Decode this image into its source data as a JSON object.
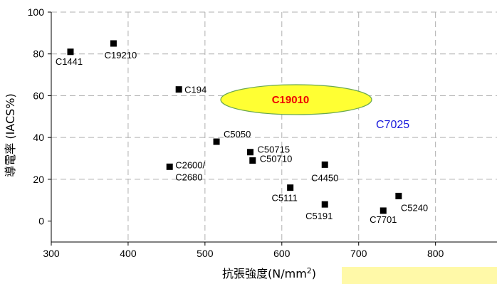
{
  "chart_data": {
    "type": "scatter",
    "title": "",
    "xlabel_main": "抗張強度(N/mm",
    "xlabel_sup": "2",
    "xlabel_tail": ")",
    "ylabel": "導電率 (IACS%)",
    "xlim": [
      300,
      880
    ],
    "ylim": [
      -10,
      100
    ],
    "x_ticks": [
      300,
      400,
      500,
      600,
      700,
      800
    ],
    "y_ticks": [
      0,
      20,
      40,
      60,
      80,
      100
    ],
    "grid": true,
    "colors": {
      "marker": "#000000",
      "ellipse_fill": "#ffff33",
      "ellipse_stroke": "#6aa84f",
      "ellipse_text": "#ee0000",
      "highlight_text": "#1a1adb",
      "band": "#fff9a8",
      "grid": "#b0b0b0"
    },
    "points": [
      {
        "name": "C1441",
        "x": 325,
        "y": 81
      },
      {
        "name": "C19210",
        "x": 381,
        "y": 85
      },
      {
        "name": "C194",
        "x": 466,
        "y": 63
      },
      {
        "name": "C5050",
        "x": 515,
        "y": 38
      },
      {
        "name": "C50715",
        "x": 559,
        "y": 33
      },
      {
        "name": "C50710",
        "x": 562,
        "y": 29
      },
      {
        "name": "C2600/",
        "name2": "C2680",
        "x": 454,
        "y": 26
      },
      {
        "name": "C4450",
        "x": 656,
        "y": 27
      },
      {
        "name": "C5111",
        "x": 611,
        "y": 16
      },
      {
        "name": "C5191",
        "x": 656,
        "y": 8
      },
      {
        "name": "C5240",
        "x": 752,
        "y": 12
      },
      {
        "name": "C7701",
        "x": 732,
        "y": 5
      }
    ],
    "annotations": [
      {
        "text": "C19010",
        "x": 600,
        "y": 58
      },
      {
        "text": "C7025",
        "x": 738,
        "y": 47
      }
    ]
  }
}
